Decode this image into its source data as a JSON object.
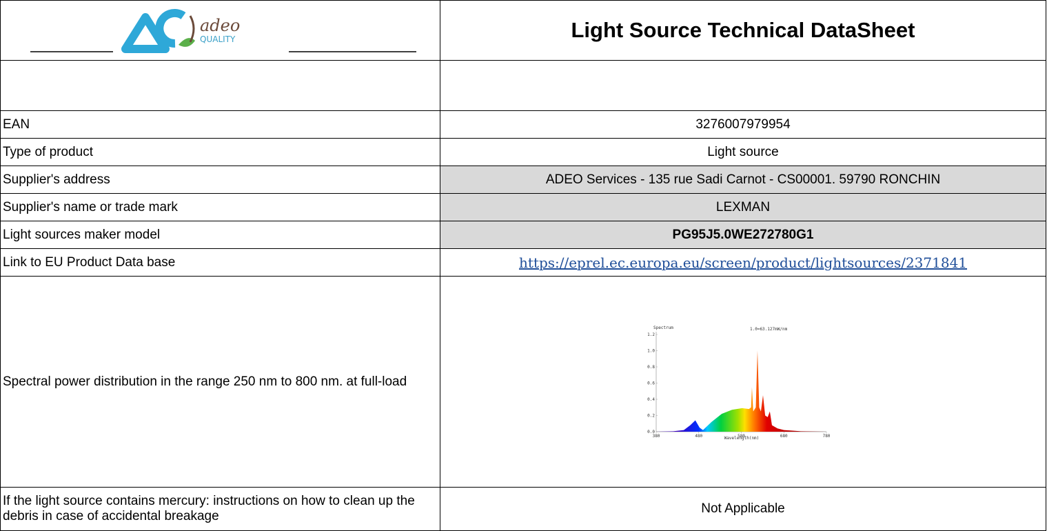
{
  "header": {
    "logo": {
      "brand": "adeo",
      "tagline": "QUALITY"
    },
    "title": "Light Source Technical DataSheet"
  },
  "rows": [
    {
      "label": "EAN",
      "value": "3276007979954"
    },
    {
      "label": "Type of product",
      "value": "Light source"
    },
    {
      "label": "Supplier's address",
      "value": "ADEO Services - 135 rue Sadi Carnot - CS00001. 59790 RONCHIN",
      "shaded": true
    },
    {
      "label": "Supplier's name or trade mark",
      "value": "LEXMAN",
      "shaded": true
    },
    {
      "label": "Light sources maker model",
      "value": "PG95J5.0WE272780G1",
      "shaded": true,
      "bold": true
    },
    {
      "label": "Link to EU Product Data base",
      "value": "https://eprel.ec.europa.eu/screen/product/lightsources/2371841",
      "link": true
    },
    {
      "label": "Spectral power distribution in the range 250 nm to 800 nm. at full-load",
      "spectrum": {
        "type": "area",
        "title": "Spectrum",
        "annotation": "1.0=63.127mW/nm",
        "x_label": "Wavelength(nm)",
        "x": [
          380,
          420,
          445,
          460,
          472,
          482,
          490,
          510,
          534,
          558,
          582,
          598,
          603,
          605,
          608,
          614,
          618,
          622,
          626,
          631,
          636,
          642,
          647,
          652,
          665,
          680,
          720,
          780
        ],
        "values": [
          0,
          0.005,
          0.02,
          0.08,
          0.14,
          0.05,
          0.02,
          0.12,
          0.22,
          0.27,
          0.29,
          0.28,
          0.3,
          0.55,
          0.25,
          0.3,
          1.0,
          0.3,
          0.25,
          0.45,
          0.2,
          0.18,
          0.25,
          0.08,
          0.04,
          0.02,
          0.005,
          0
        ],
        "xlim": [
          380,
          780
        ],
        "ylim": [
          0,
          1.2
        ],
        "xticks": [
          380,
          480,
          580,
          680,
          780
        ],
        "yticks": [
          {
            "value": 0,
            "label": "0.0"
          },
          0.2,
          0.4,
          0.6,
          0.8,
          {
            "value": 1,
            "label": "1.0"
          },
          1.2
        ]
      }
    },
    {
      "label": "If the light source contains mercury: instructions on how to clean up the debris in case of accidental breakage",
      "value": "Not Applicable"
    }
  ]
}
